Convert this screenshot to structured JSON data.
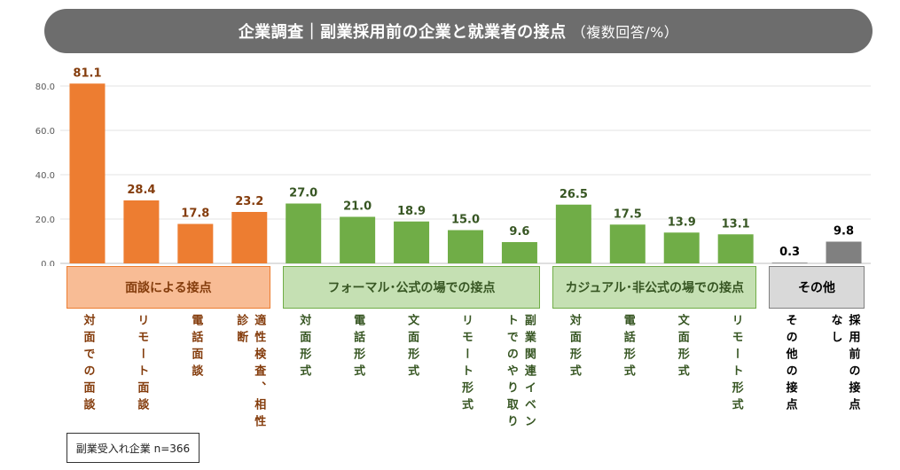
{
  "title": {
    "main": "企業調査｜副業採用前の企業と就業者の接点",
    "sub": "（複数回答/%）"
  },
  "sample_note": "副業受入れ企業 n=366",
  "colors": {
    "orange": "#ed7d31",
    "green": "#70ad47",
    "gray": "#808080",
    "orange_label": "#843c0c",
    "green_label": "#375623",
    "gray_label": "#000000",
    "orange_box_fill": "#f8bc95",
    "orange_box_border": "#ed7d31",
    "green_box_fill": "#c5e0b3",
    "green_box_border": "#70ad47",
    "gray_box_fill": "#d9d9d9",
    "gray_box_border": "#808080"
  },
  "chart_data": {
    "type": "bar",
    "title": "企業調査｜副業採用前の企業と就業者の接点",
    "ylim": [
      0,
      80
    ],
    "yticks": [
      "0.0",
      "20.0",
      "40.0",
      "60.0",
      "80.0"
    ],
    "ytick_values": [
      0,
      20,
      40,
      60,
      80
    ],
    "grid": true,
    "groups": [
      {
        "label": "面談による接点",
        "color": "orange",
        "start": 0,
        "end": 3
      },
      {
        "label": "フォーマル･公式の場での接点",
        "color": "green",
        "start": 4,
        "end": 8
      },
      {
        "label": "カジュアル･非公式の場での接点",
        "color": "green",
        "start": 9,
        "end": 12
      },
      {
        "label": "その他",
        "color": "gray",
        "start": 13,
        "end": 14
      }
    ],
    "categories": [
      "対面での面談",
      "リモート面談",
      "電話面談",
      "適性検査、相性診断",
      "対面形式",
      "電話形式",
      "文面形式",
      "リモート形式",
      "副業関連イベントでのやり取り",
      "対面形式",
      "電話形式",
      "文面形式",
      "リモート形式",
      "その他の接点",
      "採用前の接点なし"
    ],
    "category_lines": [
      [
        "対面での面談"
      ],
      [
        "リモート面談"
      ],
      [
        "電話面談"
      ],
      [
        "適性検査、相性",
        "診断"
      ],
      [
        "対面形式"
      ],
      [
        "電話形式"
      ],
      [
        "文面形式"
      ],
      [
        "リモート形式"
      ],
      [
        "副業関連イベン",
        "トでのやり取り"
      ],
      [
        "対面形式"
      ],
      [
        "電話形式"
      ],
      [
        "文面形式"
      ],
      [
        "リモート形式"
      ],
      [
        "その他の接点"
      ],
      [
        "採用前の接点",
        "なし"
      ]
    ],
    "values": [
      81.1,
      28.4,
      17.8,
      23.2,
      27.0,
      21.0,
      18.9,
      15.0,
      9.6,
      26.5,
      17.5,
      13.9,
      13.1,
      0.3,
      9.8
    ],
    "data_labels": [
      "81.1",
      "28.4",
      "17.8",
      "23.2",
      "27.0",
      "21.0",
      "18.9",
      "15.0",
      "9.6",
      "26.5",
      "17.5",
      "13.9",
      "13.1",
      "0.3",
      "9.8"
    ],
    "bar_colors": [
      "orange",
      "orange",
      "orange",
      "orange",
      "green",
      "green",
      "green",
      "green",
      "green",
      "green",
      "green",
      "green",
      "green",
      "gray",
      "gray"
    ]
  }
}
